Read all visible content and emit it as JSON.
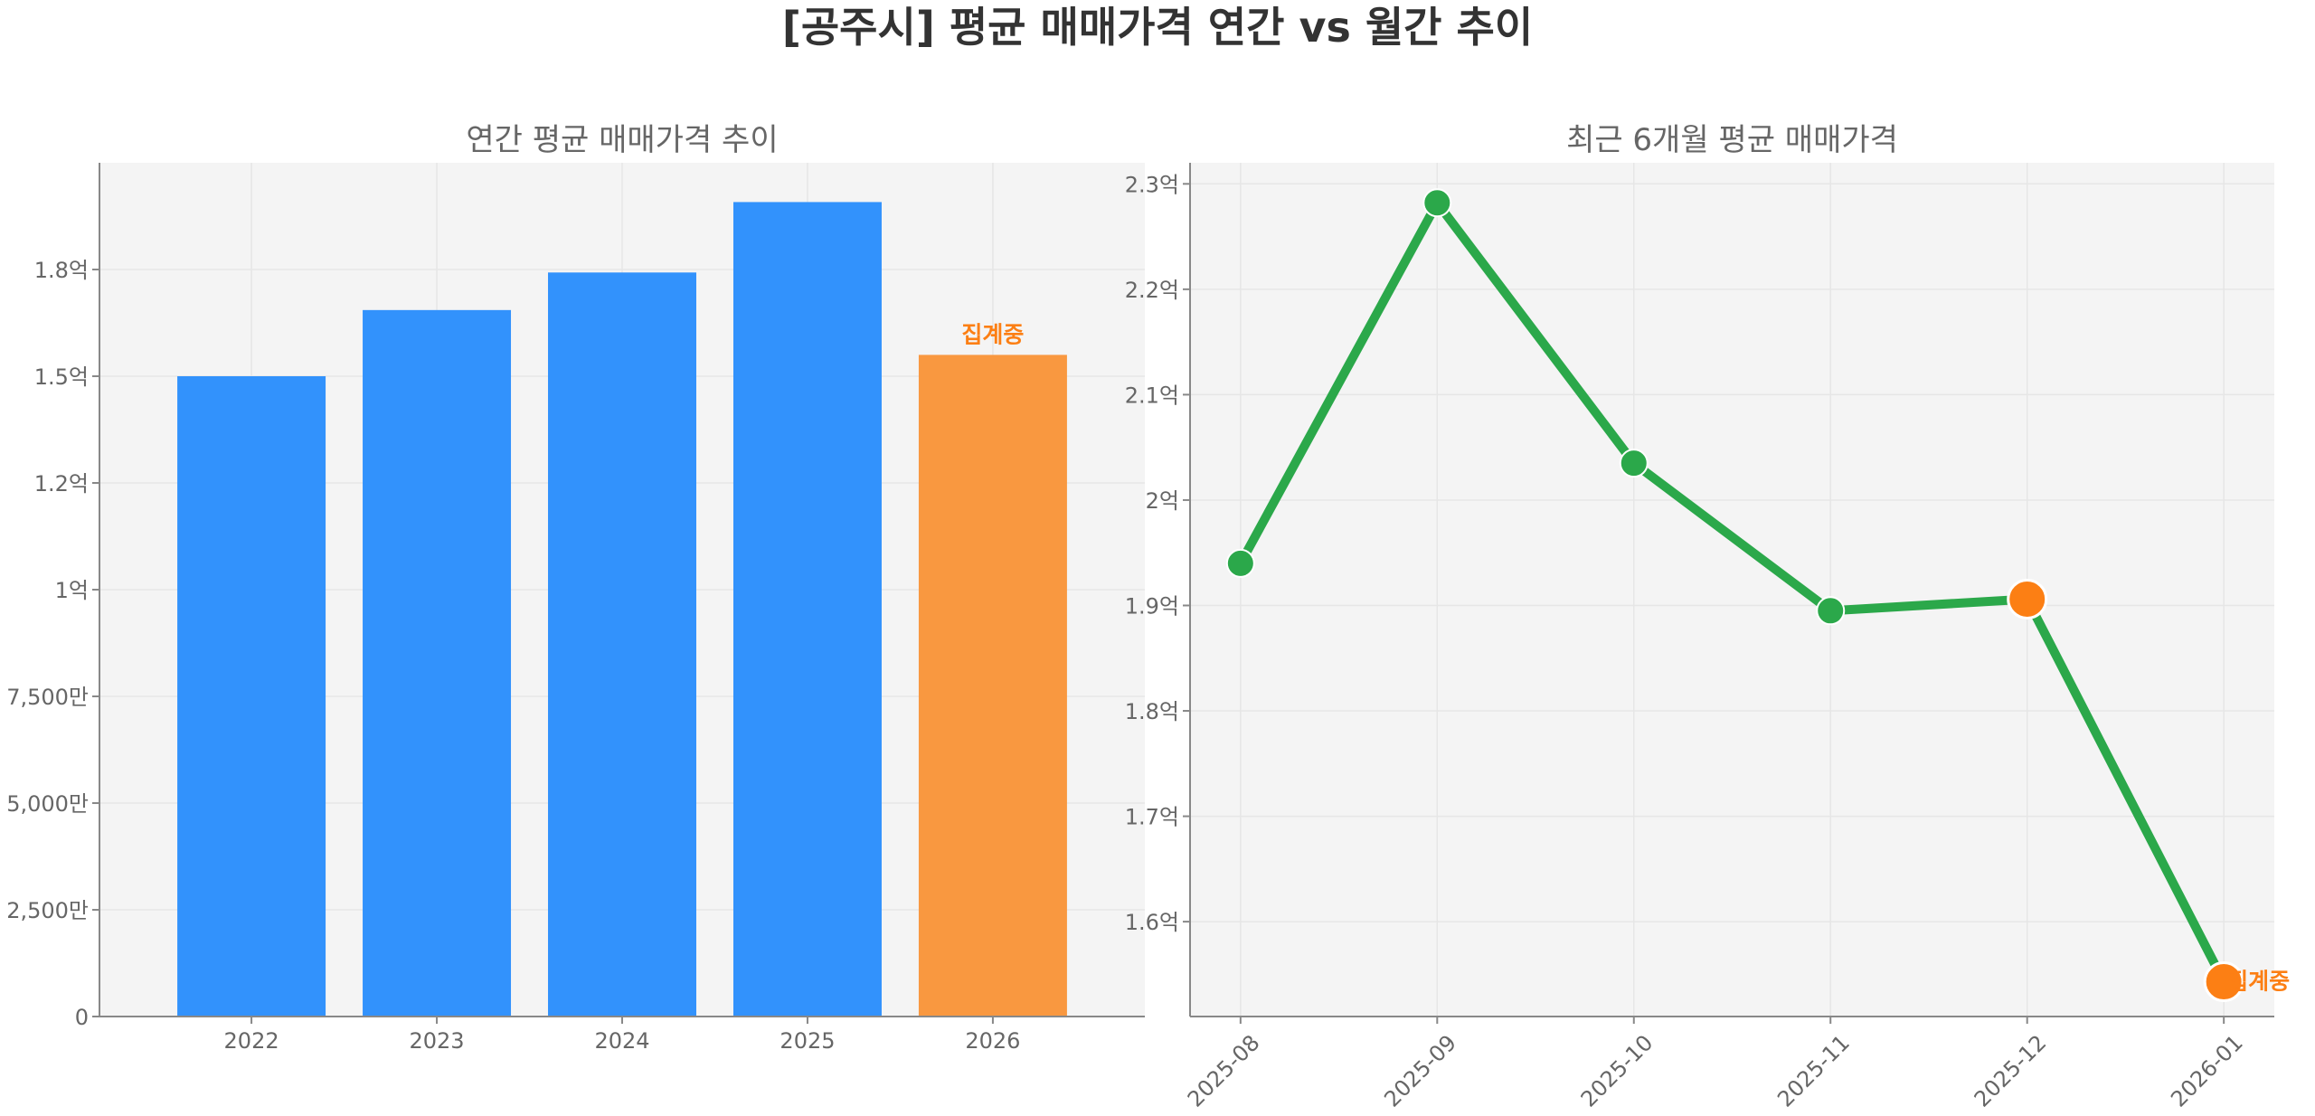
{
  "suptitle": "[공주시] 평균 매매가격 연간 vs 월간 추이",
  "colors": {
    "bar": "#3292fc",
    "bar_highlight": "#f99840",
    "line": "#2ba84a",
    "highlight": "#fc7f14",
    "annotation": "#fc7f14"
  },
  "chart_data": [
    {
      "type": "bar",
      "title": "연간 평균 매매가격 추이",
      "categories": [
        "2022",
        "2023",
        "2024",
        "2025",
        "2026"
      ],
      "values": [
        150000000,
        165500000,
        174300000,
        190800000,
        155000000
      ],
      "ylim": [
        0,
        200000000
      ],
      "yticks": [
        0,
        25000000,
        50000000,
        75000000,
        100000000,
        125000000,
        150000000,
        175000000
      ],
      "ytick_labels": [
        "0",
        "2,500만",
        "5,000만",
        "7,500만",
        "1억",
        "1.2억",
        "1.5억",
        "1.8억"
      ],
      "highlight_index": 4,
      "annotation": {
        "index": 4,
        "text": "집계중"
      },
      "grid": true,
      "xlabel": "",
      "ylabel": ""
    },
    {
      "type": "line",
      "title": "최근 6개월 평균 매매가격",
      "x": [
        "2025-08",
        "2025-09",
        "2025-10",
        "2025-11",
        "2025-12",
        "2026-01"
      ],
      "values": [
        194000000,
        228200000,
        203500000,
        189500000,
        190600000,
        154300000
      ],
      "ylim": [
        151000000,
        232000000
      ],
      "yticks": [
        160000000,
        170000000,
        180000000,
        190000000,
        200000000,
        210000000,
        220000000,
        230000000
      ],
      "ytick_labels": [
        "1.6억",
        "1.7억",
        "1.8억",
        "1.9억",
        "2억",
        "2.1억",
        "2.2억",
        "2.3억"
      ],
      "highlight_indices": [
        4,
        5
      ],
      "annotation": {
        "index": 5,
        "text": "집계중"
      },
      "grid": true,
      "xlabel": "",
      "ylabel": ""
    }
  ]
}
